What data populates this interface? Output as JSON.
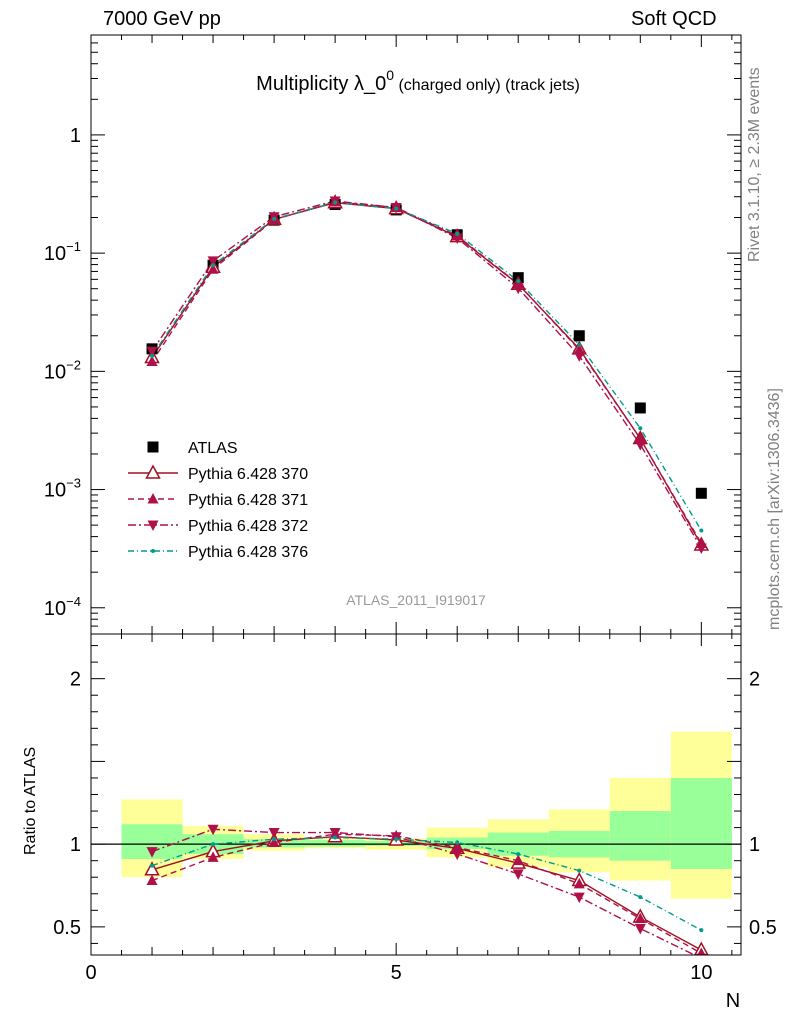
{
  "header": {
    "left": "7000 GeV pp",
    "right": "Soft QCD"
  },
  "side": {
    "rivet": "Rivet 3.1.10, ≥ 2.3M events",
    "mcplots": "mcplots.cern.ch [arXiv:1306.3436]"
  },
  "colors": {
    "atlas": "#000000",
    "p370": "#a01020",
    "p371": "#b0104a",
    "p372": "#b0104a",
    "p376": "#009a8f",
    "band_inner": "#99ff99",
    "band_outer": "#ffff99"
  },
  "chart_data": [
    {
      "type": "scatter",
      "title": "Multiplicity λ_0⁰ (charged only) (track jets)",
      "title_main": "Multiplicity λ_0",
      "title_sup": "0",
      "title_small": " (charged only) (track jets)",
      "analysis_tag": "ATLAS_2011_I919017",
      "xlabel": "N",
      "ylabel": "",
      "yscale": "log",
      "xlim": [
        0,
        10.65
      ],
      "ylim": [
        6e-05,
        7
      ],
      "x_ticks": [
        0,
        5,
        10
      ],
      "y_ticks": [
        "10^{-4}",
        "10^{-3}",
        "10^{-2}",
        "10^{-1}",
        "1"
      ],
      "legend_position": "left",
      "x": [
        1,
        2,
        3,
        4,
        5,
        6,
        7,
        8,
        9,
        10
      ],
      "series": [
        {
          "name": "ATLAS",
          "marker": "square",
          "values": [
            0.0155,
            0.079,
            0.19,
            0.258,
            0.232,
            0.143,
            0.062,
            0.02,
            0.0049,
            0.00093
          ]
        },
        {
          "name": "Pythia 6.428 370",
          "marker": "triangle-open",
          "line": "solid",
          "values": [
            0.0131,
            0.076,
            0.193,
            0.267,
            0.238,
            0.138,
            0.0545,
            0.0155,
            0.0027,
            0.00034
          ]
        },
        {
          "name": "Pythia 6.428 371",
          "marker": "triangle-up",
          "line": "dashed",
          "values": [
            0.0121,
            0.073,
            0.192,
            0.271,
            0.243,
            0.14,
            0.055,
            0.0152,
            0.0027,
            0.00035
          ]
        },
        {
          "name": "Pythia 6.428 372",
          "marker": "triangle-down",
          "line": "dashdot",
          "values": [
            0.0148,
            0.086,
            0.203,
            0.276,
            0.243,
            0.134,
            0.0505,
            0.0135,
            0.0024,
            0.00032
          ]
        },
        {
          "name": "Pythia 6.428 376",
          "marker": "dot",
          "line": "dashdot2",
          "values": [
            0.0135,
            0.079,
            0.195,
            0.268,
            0.238,
            0.146,
            0.058,
            0.0168,
            0.0033,
            0.00045
          ]
        }
      ]
    },
    {
      "type": "line",
      "ylabel": "Ratio to ATLAS",
      "xlabel": "N",
      "xlim": [
        0,
        10.65
      ],
      "ylim": [
        0.33,
        2.27
      ],
      "x_ticks": [
        0,
        5,
        10
      ],
      "y_ticks": [
        0.5,
        1,
        2
      ],
      "reference": 1,
      "x": [
        1,
        2,
        3,
        4,
        5,
        6,
        7,
        8,
        9,
        10
      ],
      "bands": {
        "inner_lo": [
          0.91,
          0.94,
          0.98,
          0.985,
          0.99,
          0.97,
          0.93,
          0.92,
          0.9,
          0.85
        ],
        "inner_hi": [
          1.12,
          1.06,
          1.03,
          1.025,
          1.02,
          1.04,
          1.07,
          1.08,
          1.2,
          1.4
        ],
        "outer_lo": [
          0.8,
          0.91,
          0.96,
          0.975,
          0.965,
          0.92,
          0.86,
          0.83,
          0.78,
          0.67
        ],
        "outer_hi": [
          1.27,
          1.11,
          1.06,
          1.035,
          1.035,
          1.1,
          1.15,
          1.21,
          1.4,
          1.68
        ]
      },
      "series": [
        {
          "name": "Pythia 6.428 370",
          "values": [
            0.845,
            0.955,
            1.02,
            1.045,
            1.025,
            0.975,
            0.885,
            0.78,
            0.56,
            0.36
          ]
        },
        {
          "name": "Pythia 6.428 371",
          "values": [
            0.78,
            0.92,
            1.01,
            1.06,
            1.05,
            0.98,
            0.9,
            0.76,
            0.55,
            0.34
          ]
        },
        {
          "name": "Pythia 6.428 372",
          "values": [
            0.955,
            1.09,
            1.07,
            1.07,
            1.045,
            0.94,
            0.82,
            0.68,
            0.49,
            0.31
          ]
        },
        {
          "name": "Pythia 6.428 376",
          "values": [
            0.87,
            1.0,
            1.03,
            1.04,
            1.03,
            1.01,
            0.94,
            0.84,
            0.68,
            0.48
          ]
        }
      ]
    }
  ]
}
